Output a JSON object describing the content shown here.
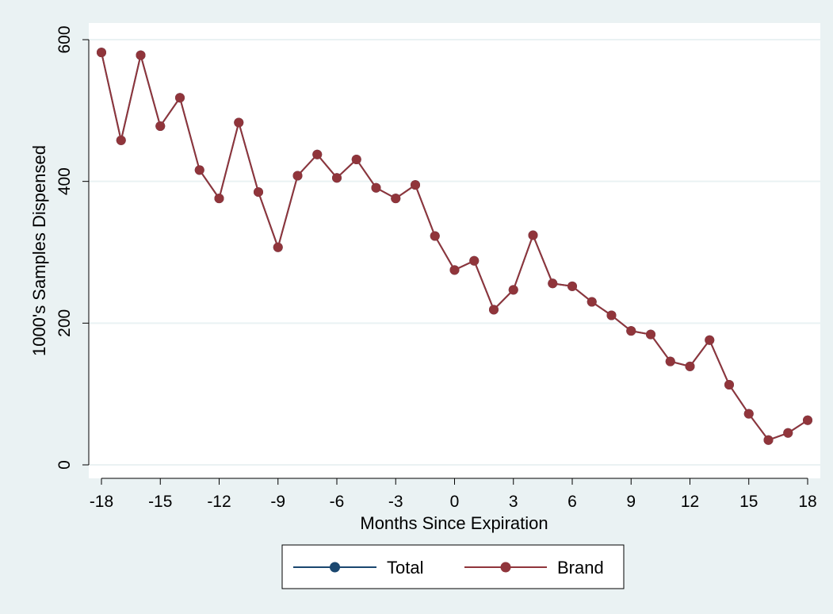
{
  "chart_data": {
    "type": "line",
    "title": "",
    "xlabel": "Months Since Expiration",
    "ylabel": "1000's Samples Dispensed",
    "xlim": [
      -18,
      18
    ],
    "ylim": [
      0,
      600
    ],
    "x_ticks": [
      -18,
      -15,
      -12,
      -9,
      -6,
      -3,
      0,
      3,
      6,
      9,
      12,
      15,
      18
    ],
    "y_ticks": [
      0,
      200,
      400,
      600
    ],
    "grid": "horizontal",
    "legend_position": "bottom",
    "x": [
      -18,
      -17,
      -16,
      -15,
      -14,
      -13,
      -12,
      -11,
      -10,
      -9,
      -8,
      -7,
      -6,
      -5,
      -4,
      -3,
      -2,
      -1,
      0,
      1,
      2,
      3,
      4,
      5,
      6,
      7,
      8,
      9,
      10,
      11,
      12,
      13,
      14,
      15,
      16,
      17,
      18
    ],
    "series": [
      {
        "name": "Total",
        "color": "#1a476f",
        "values": [
          582,
          458,
          578,
          478,
          518,
          416,
          376,
          483,
          385,
          307,
          408,
          438,
          405,
          431,
          391,
          376,
          395,
          323,
          275,
          288,
          219,
          247,
          324,
          256,
          252,
          230,
          211,
          189,
          184,
          146,
          139,
          176,
          113,
          72,
          35,
          45,
          63
        ]
      },
      {
        "name": "Brand",
        "color": "#90353b",
        "values": [
          582,
          458,
          578,
          478,
          518,
          416,
          376,
          483,
          385,
          307,
          408,
          438,
          405,
          431,
          391,
          376,
          395,
          323,
          275,
          288,
          219,
          247,
          324,
          256,
          252,
          230,
          211,
          189,
          184,
          146,
          139,
          176,
          113,
          72,
          35,
          45,
          63
        ]
      }
    ]
  }
}
